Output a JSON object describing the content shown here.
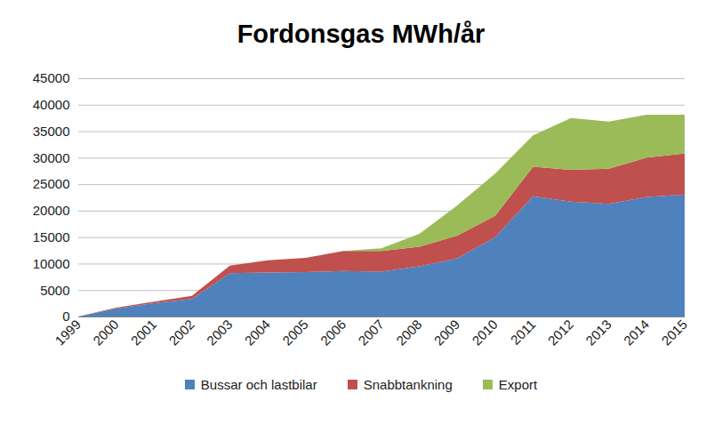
{
  "chart_data": {
    "type": "area",
    "title": "Fordonsgas MWh/år",
    "stacked": true,
    "grid": true,
    "legend": "bottom",
    "x": [
      1999,
      2000,
      2001,
      2002,
      2003,
      2004,
      2005,
      2006,
      2007,
      2008,
      2009,
      2010,
      2011,
      2012,
      2013,
      2014,
      2015
    ],
    "xlim": [
      1999,
      2015
    ],
    "xticks": [
      1999,
      2000,
      2001,
      2002,
      2003,
      2004,
      2005,
      2006,
      2007,
      2008,
      2009,
      2010,
      2011,
      2012,
      2013,
      2014,
      2015
    ],
    "ylim": [
      0,
      45000
    ],
    "yticks": [
      0,
      5000,
      10000,
      15000,
      20000,
      25000,
      30000,
      35000,
      40000,
      45000
    ],
    "series": [
      {
        "name": "Bussar och lastbilar",
        "color": "#4f81bd",
        "values": [
          0,
          1500,
          2500,
          3300,
          8200,
          8300,
          8400,
          8600,
          8500,
          9500,
          11000,
          15000,
          22700,
          21700,
          21300,
          22600,
          23000
        ]
      },
      {
        "name": "Snabbtankning",
        "color": "#c0504d",
        "values": [
          0,
          200,
          300,
          600,
          1400,
          2300,
          2700,
          3800,
          3900,
          3700,
          4300,
          4000,
          5600,
          6000,
          6600,
          7400,
          7800
        ]
      },
      {
        "name": "Export",
        "color": "#9bbb59",
        "values": [
          0,
          0,
          0,
          0,
          0,
          0,
          0,
          0,
          500,
          2400,
          5700,
          8000,
          5900,
          9800,
          8900,
          8100,
          7300
        ]
      }
    ]
  }
}
